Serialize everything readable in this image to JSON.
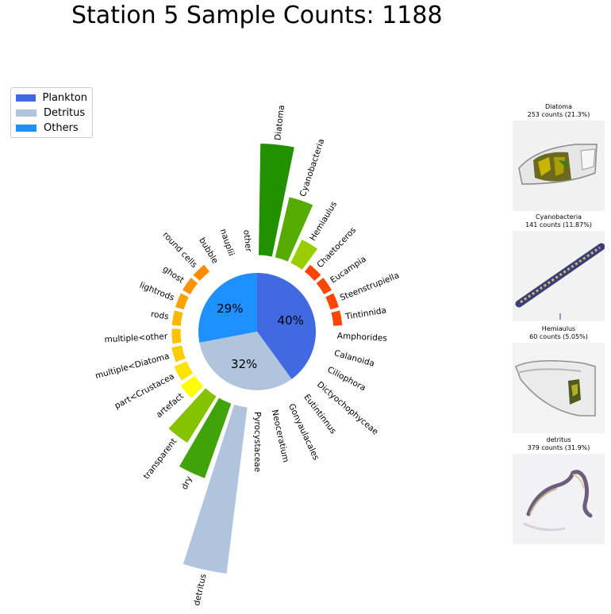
{
  "title": "Station 5 Sample Counts: 1188",
  "legend": [
    {
      "label": "Plankton",
      "color": "#4169e1"
    },
    {
      "label": "Detritus",
      "color": "#b0c4de"
    },
    {
      "label": "Others",
      "color": "#1e90ff"
    }
  ],
  "chart_data": {
    "type": "pie",
    "title": "Station 5 Sample Counts: 1188",
    "pie": {
      "slices": [
        {
          "name": "Plankton",
          "percent": 40,
          "label": "40%",
          "color": "#4169e1"
        },
        {
          "name": "Detritus",
          "percent": 32,
          "label": "32%",
          "color": "#b0c4de"
        },
        {
          "name": "Others",
          "percent": 29,
          "label": "29%",
          "color": "#1e90ff"
        }
      ]
    },
    "radial_bars": [
      {
        "label": "Diatoma",
        "count": 253,
        "color": "#229100"
      },
      {
        "label": "Cyanobacteria",
        "count": 141,
        "color": "#55ab00"
      },
      {
        "label": "Hemiaulus",
        "count": 60,
        "color": "#9acd00"
      },
      {
        "label": "Chaetoceros",
        "count": 5,
        "color": "#ff4500"
      },
      {
        "label": "Eucampia",
        "count": 5,
        "color": "#ff4500"
      },
      {
        "label": "Steenstrupiella",
        "count": 5,
        "color": "#ff4500"
      },
      {
        "label": "Tintinnida",
        "count": 5,
        "color": "#ff4500"
      },
      {
        "label": "Amphorides",
        "count": 0,
        "color": "#ff4500"
      },
      {
        "label": "Calanoida",
        "count": 0,
        "color": "#ff4500"
      },
      {
        "label": "Ciliophora",
        "count": 0,
        "color": "#ff4500"
      },
      {
        "label": "Dictyochophyceae",
        "count": 0,
        "color": "#ff4500"
      },
      {
        "label": "Eutintinnus",
        "count": 0,
        "color": "#ff4500"
      },
      {
        "label": "Gonyaulacales",
        "count": 0,
        "color": "#ff4500"
      },
      {
        "label": "Neoceratium",
        "count": 0,
        "color": "#ff4500"
      },
      {
        "label": "Pyrocystaceae",
        "count": 0,
        "color": "#ff4500"
      },
      {
        "label": "detritus",
        "count": 379,
        "color": "#b0c4de"
      },
      {
        "label": "dry",
        "count": 180,
        "color": "#41a30a"
      },
      {
        "label": "transparent",
        "count": 125,
        "color": "#85c200"
      },
      {
        "label": "artefact",
        "count": 40,
        "color": "#ffff00"
      },
      {
        "label": "part<Crustacea",
        "count": 32,
        "color": "#ffe300"
      },
      {
        "label": "multiple<Diatoma",
        "count": 25,
        "color": "#ffcc00"
      },
      {
        "label": "multiple<other",
        "count": 20,
        "color": "#ffc200"
      },
      {
        "label": "rods",
        "count": 18,
        "color": "#ffb800"
      },
      {
        "label": "lightrods",
        "count": 16,
        "color": "#ffa200"
      },
      {
        "label": "ghost",
        "count": 14,
        "color": "#ff9400"
      },
      {
        "label": "round cells",
        "count": 12,
        "color": "#ff8c00"
      },
      {
        "label": "bubble",
        "count": 0,
        "color": "#ff8c00"
      },
      {
        "label": "nauplii",
        "count": 0,
        "color": "#ff8c00"
      },
      {
        "label": "other",
        "count": 0,
        "color": "#ff8c00"
      }
    ]
  },
  "thumbnails": [
    {
      "name": "Diatoma",
      "caption": "253 counts (21.3%)"
    },
    {
      "name": "Cyanobacteria",
      "caption": "141 counts (11.87%)"
    },
    {
      "name": "Hemiaulus",
      "caption": "60 counts (5.05%)"
    },
    {
      "name": "detritus",
      "caption": "379 counts (31.9%)"
    }
  ]
}
